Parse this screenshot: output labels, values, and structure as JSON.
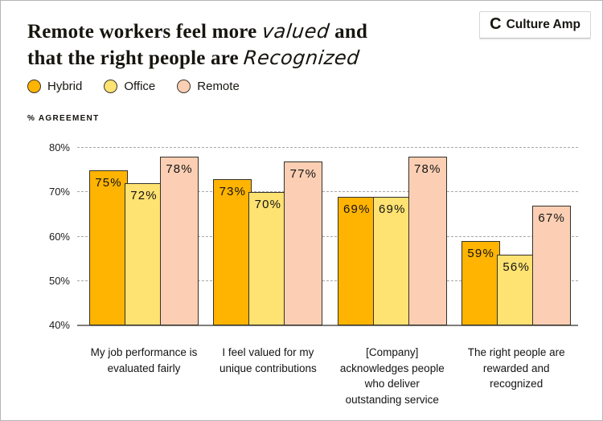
{
  "header": {
    "title": {
      "line1_pre": "Remote workers feel more",
      "line1_script": "valued",
      "line1_post": "and",
      "line2_pre": "that the right people are",
      "line2_script": "Recognized"
    },
    "brand": {
      "logo_icon": "C",
      "name": "Culture Amp"
    }
  },
  "chart_data": {
    "type": "bar",
    "title": "Remote workers feel more valued and that the right people are recognized",
    "ylabel": "% AGREEMENT",
    "xlabel": "",
    "categories": [
      [
        "My job performance is",
        "evaluated fairly"
      ],
      [
        "I feel valued for my",
        "unique contributions"
      ],
      [
        "[Company]",
        "acknowledges people",
        "who deliver",
        "outstanding service"
      ],
      [
        "The right people are",
        "rewarded and",
        "recognized"
      ]
    ],
    "series": [
      {
        "name": "Hybrid",
        "color": "#FFB402",
        "values": [
          75,
          73,
          69,
          59
        ]
      },
      {
        "name": "Office",
        "color": "#FEE272",
        "values": [
          72,
          70,
          69,
          56
        ]
      },
      {
        "name": "Remote",
        "color": "#FCCFB4",
        "values": [
          78,
          77,
          78,
          67
        ]
      }
    ],
    "ylim": [
      40,
      82
    ],
    "yticks": [
      40,
      50,
      60,
      70,
      80
    ],
    "tick_suffix": "%",
    "value_suffix": "%",
    "grid": "horizontal-dashed",
    "legend_position": "top-left",
    "bar_outline_color": "#34312a",
    "baseline_color": "#7f7d79"
  }
}
